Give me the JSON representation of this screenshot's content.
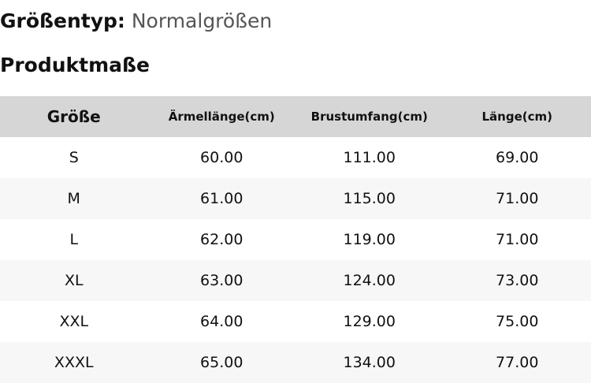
{
  "size_type": {
    "label": "Größentyp:",
    "value": "Normalgrößen"
  },
  "section_title": "Produktmaße",
  "table": {
    "headers": [
      "Größe",
      "Ärmellänge(cm)",
      "Brustumfang(cm)",
      "Länge(cm)"
    ],
    "rows": [
      [
        "S",
        "60.00",
        "111.00",
        "69.00"
      ],
      [
        "M",
        "61.00",
        "115.00",
        "71.00"
      ],
      [
        "L",
        "62.00",
        "119.00",
        "71.00"
      ],
      [
        "XL",
        "63.00",
        "124.00",
        "73.00"
      ],
      [
        "XXL",
        "64.00",
        "129.00",
        "75.00"
      ],
      [
        "XXXL",
        "65.00",
        "134.00",
        "77.00"
      ]
    ]
  }
}
